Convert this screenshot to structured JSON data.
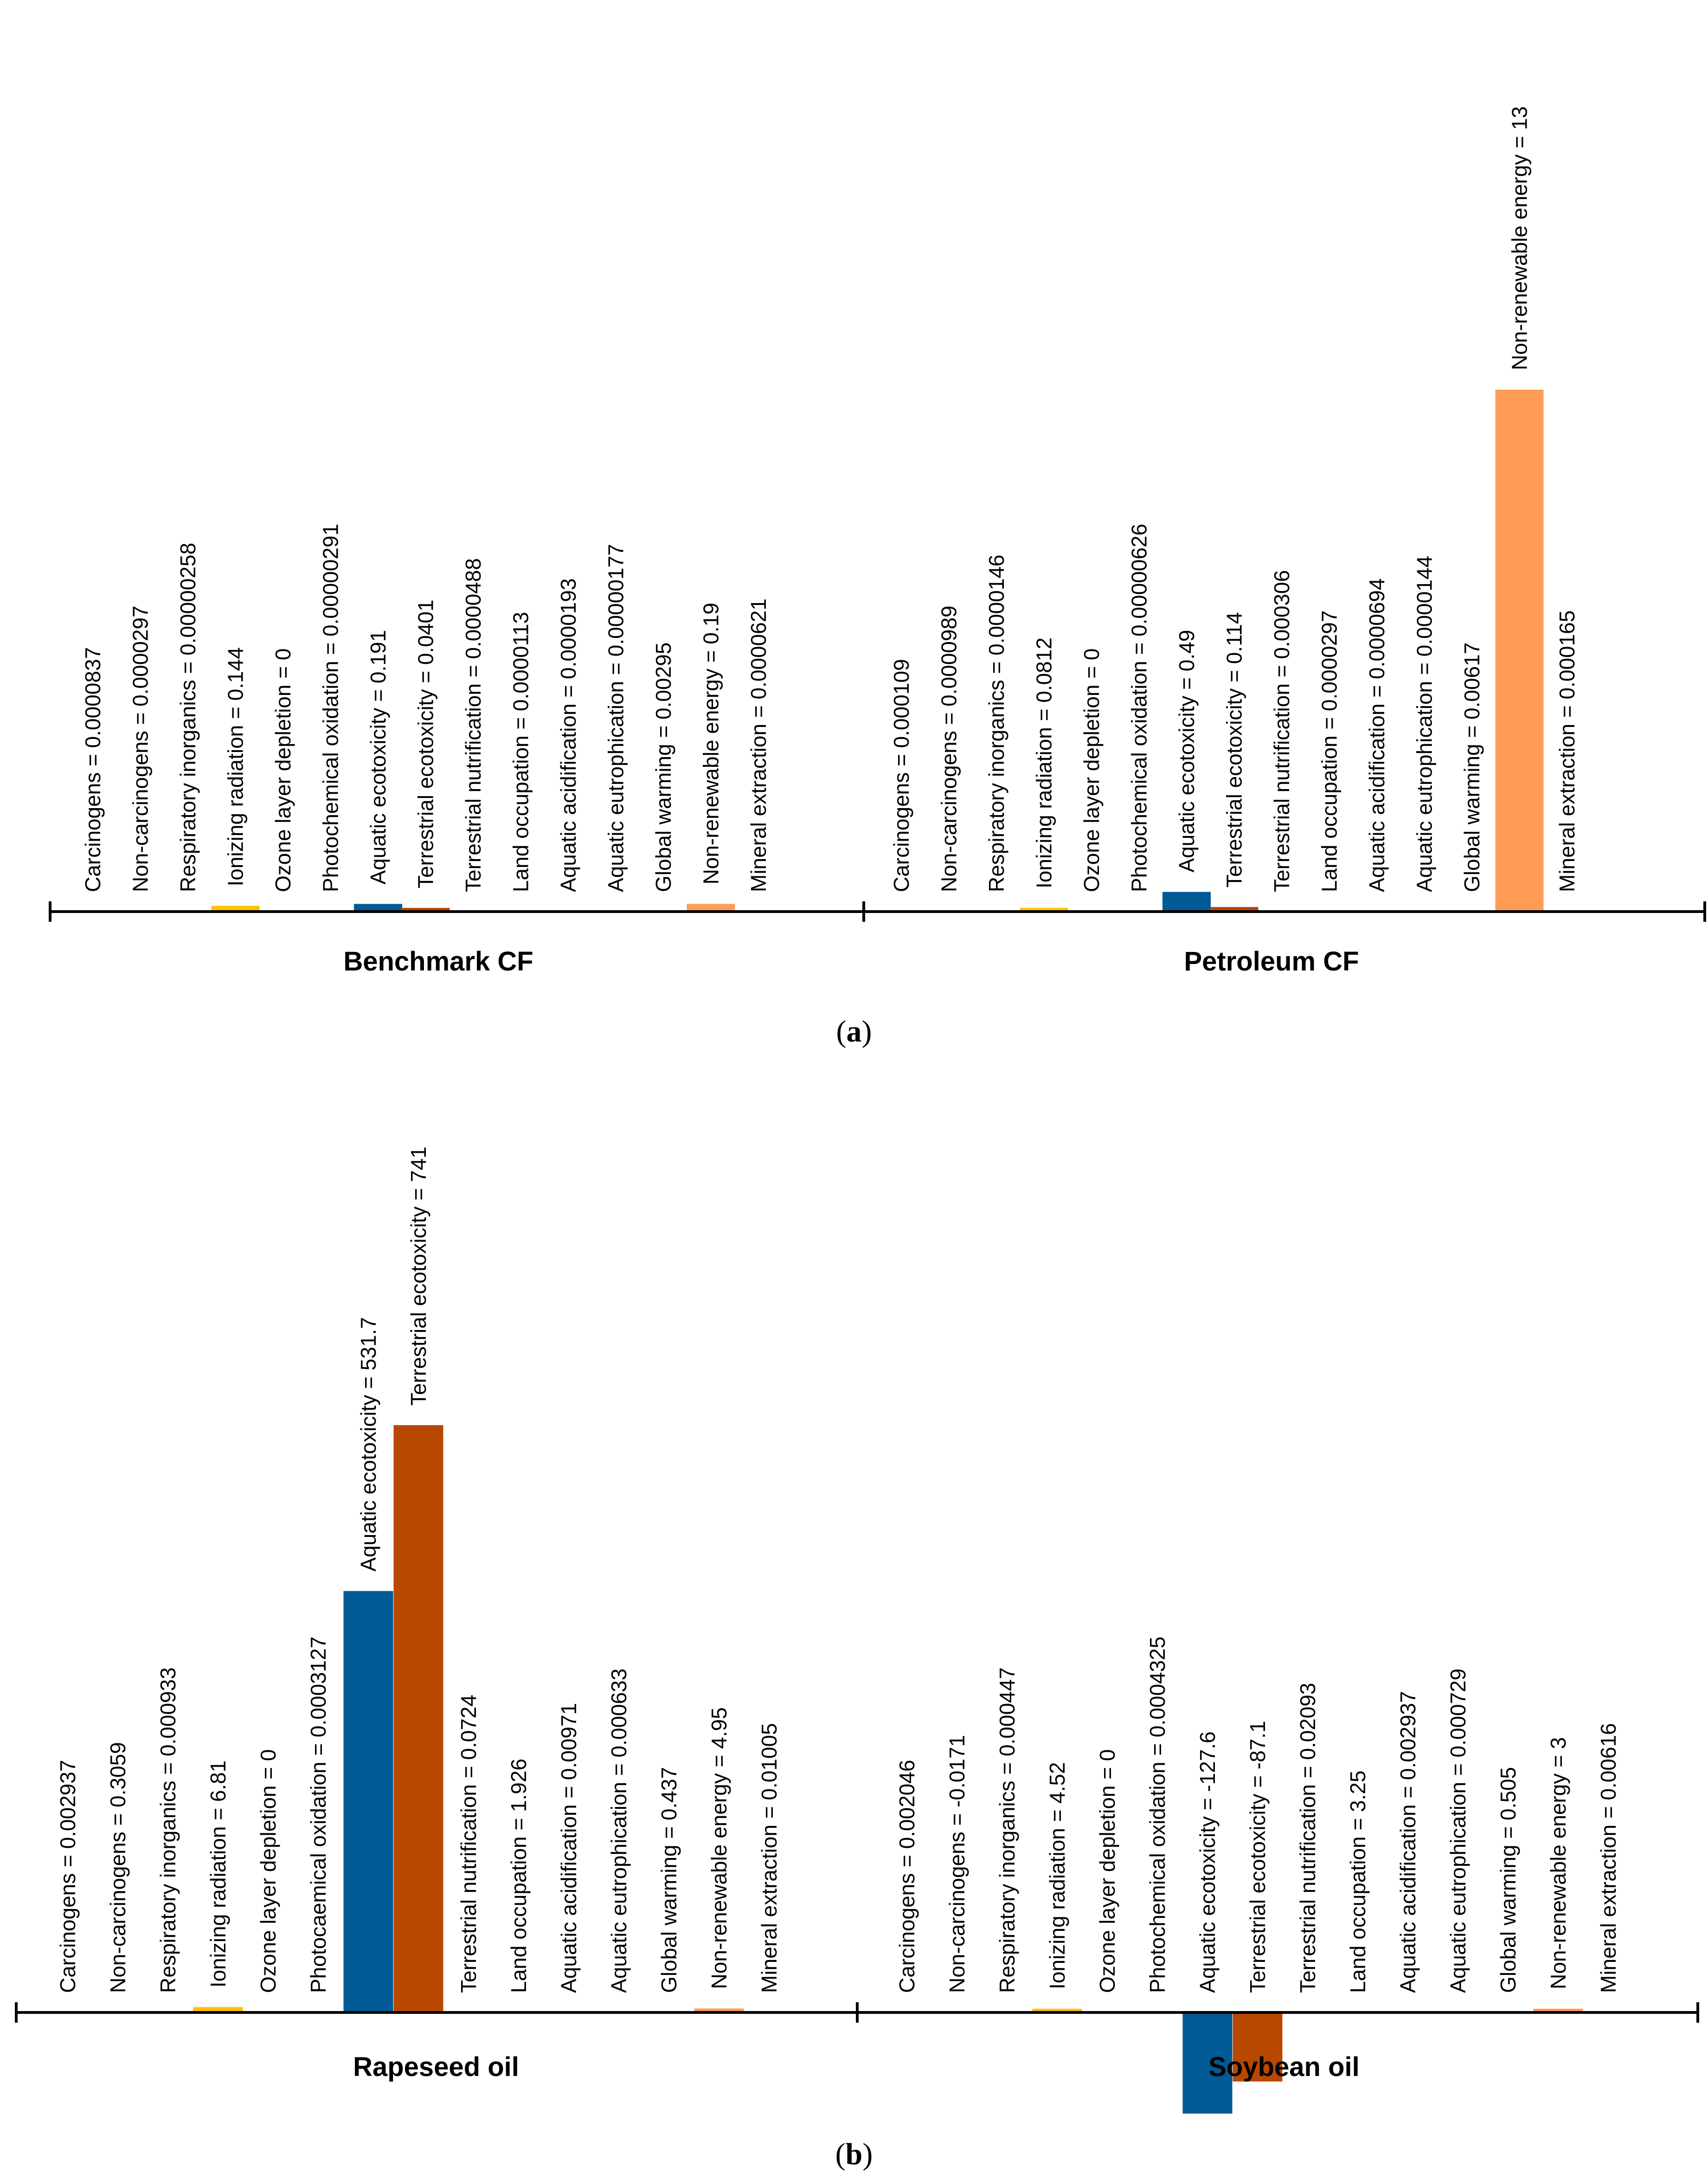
{
  "colors": {
    "ionizing": "#FFC000",
    "aquatic_ecotoxicity": "#005A96",
    "terrestrial_ecotoxicity": "#B84700",
    "non_renewable_energy": "#FF9B55",
    "axis": "#000000"
  },
  "chart_data": [
    {
      "type": "bar",
      "panel": "a",
      "caption": "a",
      "series_label_format": "category = value",
      "ylim": [
        0,
        13
      ],
      "groups": [
        {
          "name": "Benchmark CF",
          "items": [
            {
              "label": "Carcinogens =  0.0000837",
              "value": 8.37e-05
            },
            {
              "label": "Non-carcinogens = 0.0000297",
              "value": 2.97e-05
            },
            {
              "label": "Respiratory inorganics = 0.00000258",
              "value": 2.58e-06
            },
            {
              "label": "Ionizing radiation = 0.144",
              "value": 0.144
            },
            {
              "label": "Ozone layer depletion = 0",
              "value": 0
            },
            {
              "label": "Photochemical oxidation = 0.00000291",
              "value": 2.91e-06
            },
            {
              "label": "Aquatic ecotoxicity = 0.191",
              "value": 0.191
            },
            {
              "label": "Terrestrial ecotoxicity = 0.0401",
              "value": 0.0401
            },
            {
              "label": "Terrestrial nutrification = 0.0000488",
              "value": 4.88e-05
            },
            {
              "label": "Land occupation = 0.0000113",
              "value": 1.13e-05
            },
            {
              "label": "Aquatic acidification = 0.0000193",
              "value": 1.93e-05
            },
            {
              "label": "Aquatic eutrophication = 0.00000177",
              "value": 1.77e-06
            },
            {
              "label": "Global warming = 0.00295",
              "value": 0.00295
            },
            {
              "label": "Non-renewable energy = 0.19",
              "value": 0.19
            },
            {
              "label": "Mineral extraction = 0.0000621",
              "value": 6.21e-05
            }
          ]
        },
        {
          "name": "Petroleum CF",
          "items": [
            {
              "label": "Carcinogens =  0.000109",
              "value": 0.000109
            },
            {
              "label": "Non-carcinogens = 0.0000989",
              "value": 9.89e-05
            },
            {
              "label": "Respiratory inorganics = 0.0000146",
              "value": 1.46e-05
            },
            {
              "label": "Ionizing radiation = 0.0812",
              "value": 0.0812
            },
            {
              "label": "Ozone layer depletion = 0",
              "value": 0
            },
            {
              "label": "Photochemical oxidation = 0.00000626",
              "value": 6.26e-06
            },
            {
              "label": "Aquatic ecotoxicity = 0.49",
              "value": 0.49
            },
            {
              "label": "Terrestrial ecotoxicity = 0.114",
              "value": 0.114
            },
            {
              "label": "Terrestrial nutrification = 0.000306",
              "value": 0.000306
            },
            {
              "label": "Land occupation = 0.0000297",
              "value": 2.97e-05
            },
            {
              "label": "Aquatic acidification = 0.0000694",
              "value": 6.94e-05
            },
            {
              "label": "Aquatic eutrophication = 0.0000144",
              "value": 1.44e-05
            },
            {
              "label": "Global warming = 0.00617",
              "value": 0.00617
            },
            {
              "label": "Non-renewable energy = 13",
              "value": 13
            },
            {
              "label": "Mineral extraction = 0.000165",
              "value": 0.000165
            }
          ]
        }
      ]
    },
    {
      "type": "bar",
      "panel": "b",
      "caption": "b",
      "ylim": [
        -127.6,
        741
      ],
      "groups": [
        {
          "name": "Rapeseed oil",
          "items": [
            {
              "label": "Carcinogens =  0.002937",
              "value": 0.002937
            },
            {
              "label": "Non-carcinogens = 0.3059",
              "value": 0.3059
            },
            {
              "label": "Respiratory inorganics = 0.000933",
              "value": 0.000933
            },
            {
              "label": "Ionizing radiation = 6.81",
              "value": 6.81
            },
            {
              "label": "Ozone layer depletion = 0",
              "value": 0
            },
            {
              "label": "Photocaemical oxidation = 0.0003127",
              "value": 0.0003127
            },
            {
              "label": "Aquatic ecotoxicity = 531.7",
              "value": 531.7
            },
            {
              "label": "Terrestrial ecotoxicity = 741",
              "value": 741
            },
            {
              "label": "Terrestrial nutrification = 0.0724",
              "value": 0.0724
            },
            {
              "label": "Land occupation = 1.926",
              "value": 1.926
            },
            {
              "label": "Aquatic acidification = 0.00971",
              "value": 0.00971
            },
            {
              "label": "Aquatic eutrophication = 0.000633",
              "value": 0.000633
            },
            {
              "label": "Global warming = 0.437",
              "value": 0.437
            },
            {
              "label": "Non-renewable energy = 4.95",
              "value": 4.95
            },
            {
              "label": "Mineral extraction = 0.01005",
              "value": 0.01005
            }
          ]
        },
        {
          "name": "Soybean oil",
          "items": [
            {
              "label": "Carcinogens =  0.002046",
              "value": 0.002046
            },
            {
              "label": "Non-carcinogens = -0.0171",
              "value": -0.0171
            },
            {
              "label": "Respiratory inorganics = 0.000447",
              "value": 0.000447
            },
            {
              "label": "Ionizing radiation = 4.52",
              "value": 4.52
            },
            {
              "label": "Ozone layer depletion = 0",
              "value": 0
            },
            {
              "label": "Photochemical oxidation = 0.0004325",
              "value": 0.0004325
            },
            {
              "label": "Aquatic ecotoxicity = -127.6",
              "value": -127.6
            },
            {
              "label": "Terrestrial ecotoxicity = -87.1",
              "value": -87.1
            },
            {
              "label": "Terrestrial nutrification = 0.02093",
              "value": 0.02093
            },
            {
              "label": "Land occupation = 3.25",
              "value": 3.25
            },
            {
              "label": "Aquatic acidification = 0.002937",
              "value": 0.002937
            },
            {
              "label": "Aquatic eutrophication = 0.000729",
              "value": 0.000729
            },
            {
              "label": "Global warming = 0.505",
              "value": 0.505
            },
            {
              "label": "Non-renewable energy = 3",
              "value": 3
            },
            {
              "label": "Mineral extraction = 0.00616",
              "value": 0.00616
            }
          ]
        }
      ]
    }
  ]
}
